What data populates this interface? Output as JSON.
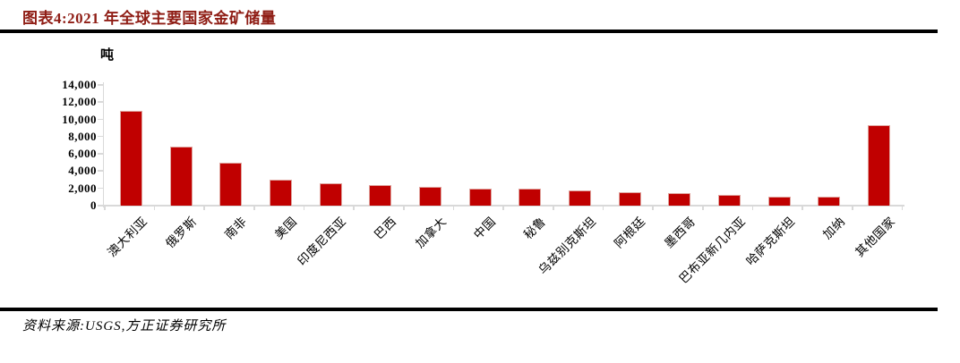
{
  "header": {
    "title": "图表4:2021 年全球主要国家金矿储量"
  },
  "footer": {
    "source": "资料来源:USGS,方正证券研究所"
  },
  "chart_data": {
    "type": "bar",
    "title": "图表4:2021 年全球主要国家金矿储量",
    "unit": "吨",
    "categories": [
      "澳大利亚",
      "俄罗斯",
      "南非",
      "美国",
      "印度尼西亚",
      "巴西",
      "加拿大",
      "中国",
      "秘鲁",
      "乌兹别克斯坦",
      "阿根廷",
      "墨西哥",
      "巴布亚新几内亚",
      "哈萨克斯坦",
      "加纳",
      "其他国家"
    ],
    "values": [
      11000,
      6800,
      5000,
      3000,
      2600,
      2400,
      2200,
      2000,
      2000,
      1800,
      1600,
      1400,
      1200,
      1000,
      1000,
      9300
    ],
    "ylabel": "吨",
    "ylim": [
      0,
      14000
    ],
    "ytick_interval": 2000,
    "ytick_labels": [
      "0",
      "2,000",
      "4,000",
      "6,000",
      "8,000",
      "10,000",
      "12,000",
      "14,000"
    ],
    "grid": false,
    "legend_position": "none",
    "bar_color": "#c00000",
    "axis_color": "#d9d9d9",
    "source": "资料来源:USGS,方正证券研究所"
  },
  "colors": {
    "title_text": "#8f1d15",
    "bar_fill": "#c00000",
    "bar_edge": "#dfa49e",
    "axis_gray": "#d9d9d9",
    "divider": "#000000",
    "text": "#000000",
    "background": "#ffffff"
  }
}
